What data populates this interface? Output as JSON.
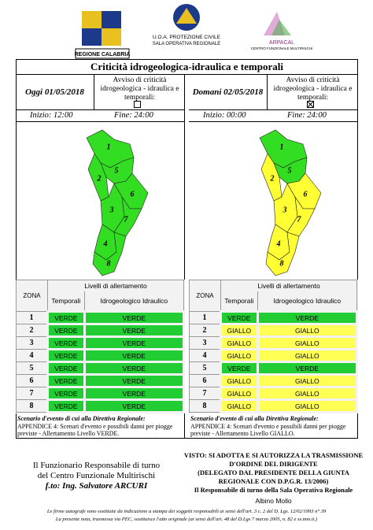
{
  "header": {
    "left_logo": "REGIONE CALABRIA",
    "center_lines": [
      "U.O.A. PROTEZIONE CIVILE",
      "SALA OPERATIVA REGIONALE"
    ],
    "right_logo": "ARPACAL",
    "right_sub": "CENTRO FUNZIONALE MULTIRISCHI"
  },
  "title": "Criticità idrogeologica-idraulica e temporali",
  "panels": [
    {
      "date": "Oggi 01/05/2018",
      "notice": "Avviso di criticità idrogeologica - idraulica e temporali:",
      "checked": false,
      "start": "Inizio: 12:00",
      "end": "Fine: 24:00",
      "table": {
        "zone_header": "ZONA",
        "levels_header": "Livelli di allertamento",
        "col1": "Temporali",
        "col2": "Idrogeologico Idraulico",
        "rows": [
          [
            "1",
            "VERDE",
            "VERDE"
          ],
          [
            "2",
            "VERDE",
            "VERDE"
          ],
          [
            "3",
            "VERDE",
            "VERDE"
          ],
          [
            "4",
            "VERDE",
            "VERDE"
          ],
          [
            "5",
            "VERDE",
            "VERDE"
          ],
          [
            "6",
            "VERDE",
            "VERDE"
          ],
          [
            "7",
            "VERDE",
            "VERDE"
          ],
          [
            "8",
            "VERDE",
            "VERDE"
          ]
        ]
      },
      "scenario_title": "Scenario d'evento di cui alla Direttiva Regionale:",
      "scenario": "APPENDICE 4: Scenari d'evento e possibili danni per piogge previste - Allertamento Livello VERDE."
    },
    {
      "date": "Domani 02/05/2018",
      "notice": "Avviso di criticità idrogeologica - idraulica e temporali:",
      "checked": true,
      "start": "Inizio: 00:00",
      "end": "Fine: 24:00",
      "table": {
        "zone_header": "ZONA",
        "levels_header": "Livelli di allertamento",
        "col1": "Temporali",
        "col2": "Idrogeologico Idraulico",
        "rows": [
          [
            "1",
            "VERDE",
            "VERDE"
          ],
          [
            "2",
            "GIALLO",
            "GIALLO"
          ],
          [
            "3",
            "GIALLO",
            "GIALLO"
          ],
          [
            "4",
            "GIALLO",
            "GIALLO"
          ],
          [
            "5",
            "VERDE",
            "VERDE"
          ],
          [
            "6",
            "GIALLO",
            "GIALLO"
          ],
          [
            "7",
            "GIALLO",
            "GIALLO"
          ],
          [
            "8",
            "GIALLO",
            "GIALLO"
          ]
        ]
      },
      "scenario_title": "Scenario d'evento di cui alla Direttiva Regionale:",
      "scenario": "APPENDICE 4: Scenari d'evento e possibili danni per piogge previste - Allertamento Livello GIALLO."
    }
  ],
  "footer": {
    "left": [
      "Il Funzionario Responsabile di turno",
      "del Centro Funzionale Multirischi",
      "f.to: Ing. Salvatore ARCURI"
    ],
    "right": [
      "VISTO: SI ADOTTA E SI AUTORIZZA LA TRASMISSIONE",
      "D'ORDINE DEL DIRIGENTE",
      "(DELEGATO DAL PRESIDENTE DELLA GIUNTA",
      "REGIONALE CON D.P.G.R. 13/2006)",
      "Il Responsabile di turno della Sala Operativa Regionale",
      "Albino Mollo"
    ],
    "notes": [
      "Le firme autografe sono sostituite da indicazione a stampa dei soggetti responsabili ai sensi dell'art. 3 c. 2 del D. Lgs. 12/02/1993 n° 39",
      "La presente nota, trasmessa via PEC, sostituisce l'atto originale (ai sensi dell'art. 48 del D.Lgs 7 marzo 2005, n. 82 e ss.mm.ii.)"
    ]
  }
}
